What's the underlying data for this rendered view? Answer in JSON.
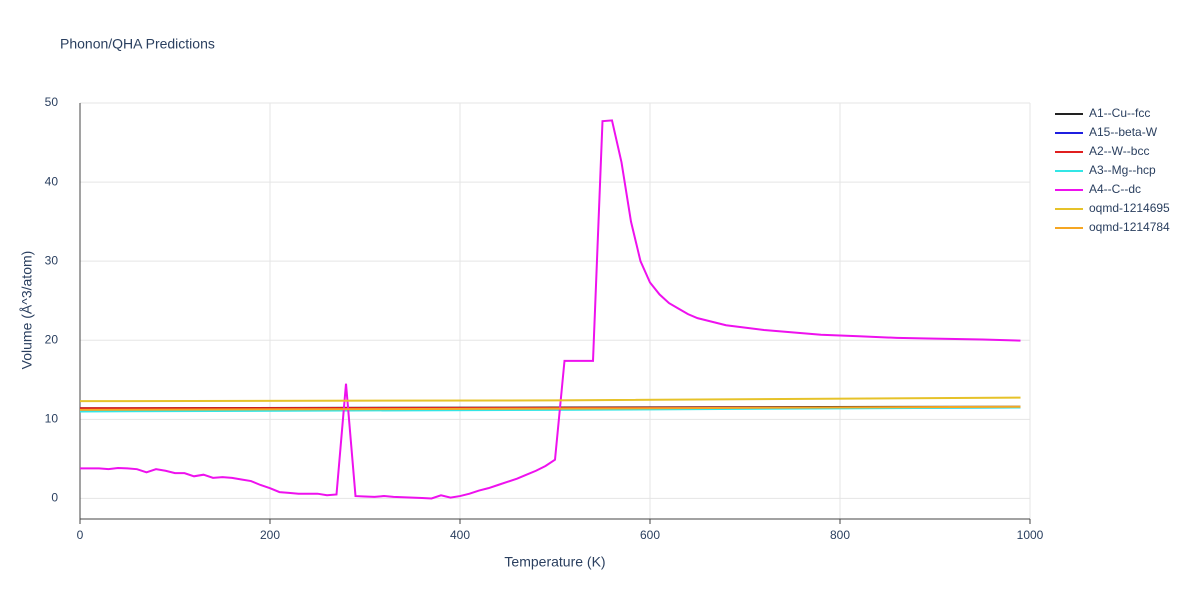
{
  "chart_data": {
    "type": "line",
    "title": "Phonon/QHA Predictions",
    "x_label": "Temperature (K)",
    "y_label": "Volume (Å^3/atom)",
    "xlim": [
      0,
      1000
    ],
    "ylim": [
      -2.6,
      50
    ],
    "xticks": [
      0,
      200,
      400,
      600,
      800,
      1000
    ],
    "yticks": [
      0,
      10,
      20,
      30,
      40,
      50
    ],
    "grid": true,
    "legend": "right",
    "series": [
      {
        "name": "A1--Cu--fcc",
        "color": "#222222",
        "x": [
          0,
          500,
          990
        ],
        "values": [
          11.4,
          11.5,
          11.6
        ]
      },
      {
        "name": "A15--beta-W",
        "color": "#1f1fe0",
        "x": [
          0,
          500,
          990
        ],
        "values": [
          11.3,
          11.4,
          11.5
        ]
      },
      {
        "name": "A2--W--bcc",
        "color": "#e01f1f",
        "x": [
          0,
          500,
          990
        ],
        "values": [
          11.4,
          11.45,
          11.55
        ]
      },
      {
        "name": "A3--Mg--hcp",
        "color": "#33e6e6",
        "x": [
          0,
          500,
          990
        ],
        "values": [
          11.0,
          11.2,
          11.5
        ]
      },
      {
        "name": "A4--C--dc",
        "color": "#ee11ee",
        "x": [
          0,
          10,
          20,
          30,
          40,
          50,
          60,
          70,
          80,
          90,
          100,
          110,
          120,
          130,
          140,
          150,
          160,
          170,
          180,
          190,
          200,
          210,
          220,
          230,
          240,
          250,
          260,
          270,
          280,
          290,
          300,
          310,
          320,
          330,
          340,
          350,
          360,
          370,
          380,
          390,
          400,
          410,
          420,
          430,
          440,
          450,
          460,
          470,
          480,
          490,
          500,
          510,
          520,
          530,
          540,
          550,
          560,
          570,
          580,
          590,
          600,
          610,
          620,
          630,
          640,
          650,
          660,
          670,
          680,
          700,
          720,
          750,
          780,
          820,
          860,
          900,
          950,
          990
        ],
        "values": [
          3.8,
          3.8,
          3.8,
          3.7,
          3.85,
          3.8,
          3.7,
          3.3,
          3.7,
          3.5,
          3.2,
          3.2,
          2.8,
          3.0,
          2.6,
          2.7,
          2.6,
          2.4,
          2.2,
          1.7,
          1.3,
          0.8,
          0.7,
          0.6,
          0.6,
          0.6,
          0.4,
          0.5,
          14.5,
          0.3,
          0.25,
          0.2,
          0.3,
          0.2,
          0.15,
          0.1,
          0.05,
          0.0,
          0.4,
          0.1,
          0.3,
          0.6,
          1.0,
          1.3,
          1.7,
          2.1,
          2.5,
          3.0,
          3.5,
          4.1,
          4.9,
          17.4,
          17.4,
          17.4,
          17.4,
          47.7,
          47.8,
          42.5,
          35,
          30,
          27.3,
          25.8,
          24.7,
          24,
          23.3,
          22.8,
          22.5,
          22.2,
          21.9,
          21.6,
          21.3,
          21.0,
          20.7,
          20.5,
          20.3,
          20.2,
          20.1,
          19.95
        ]
      },
      {
        "name": "oqmd-1214695",
        "color": "#e6c229",
        "x": [
          0,
          500,
          990
        ],
        "values": [
          12.3,
          12.4,
          12.75
        ]
      },
      {
        "name": "oqmd-1214784",
        "color": "#f5a623",
        "x": [
          0,
          500,
          990
        ],
        "values": [
          11.2,
          11.35,
          11.6
        ]
      }
    ]
  }
}
